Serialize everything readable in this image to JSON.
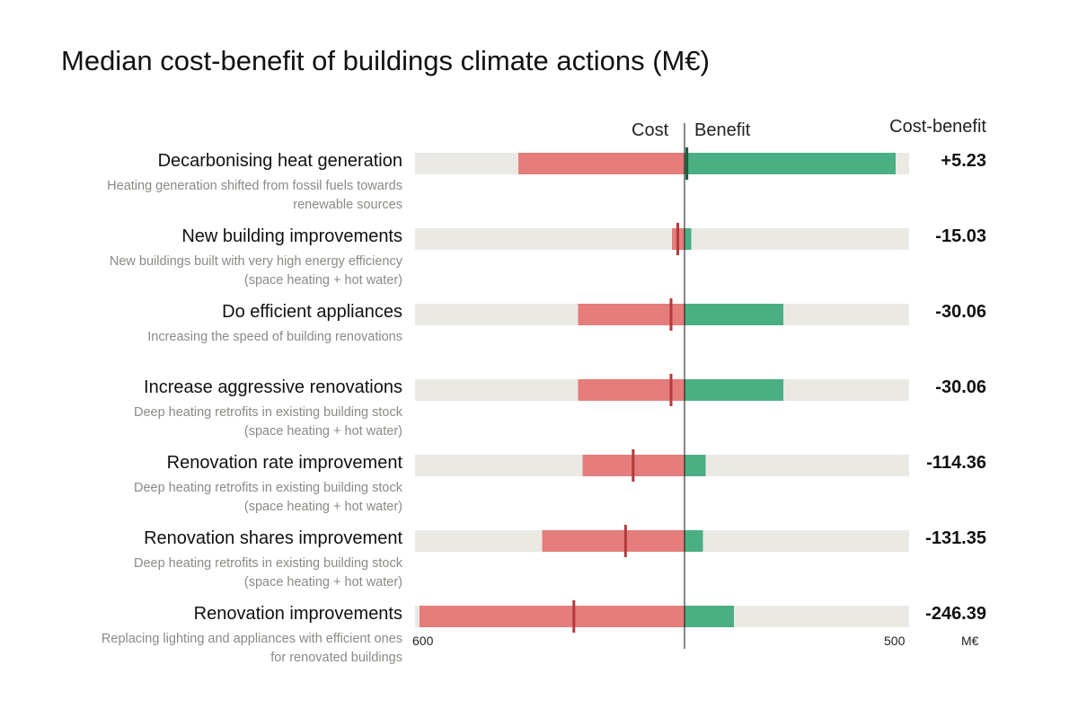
{
  "chart_data": {
    "type": "bar",
    "title": "Median cost-benefit of buildings climate actions (M€)",
    "headers": {
      "cost": "Cost",
      "benefit": "Benefit",
      "cost_benefit": "Cost-benefit"
    },
    "axis": {
      "left_tick": "600",
      "right_tick": "500",
      "unit": "M€",
      "xlim": [
        -600,
        500
      ]
    },
    "colors": {
      "cost": "#e47d7b",
      "benefit": "#4baf84",
      "track": "#ebe9e4",
      "net_cost": "#b53a3a",
      "net_benefit": "#1e5a3c",
      "zero": "#111111"
    },
    "rows": [
      {
        "title": "Decarbonising heat generation",
        "desc": [
          "Heating generation shifted from fossil fuels towards",
          "renewable sources"
        ],
        "cost": -370,
        "benefit": 470,
        "net": 5.23,
        "net_label": "+5.23"
      },
      {
        "title": "New building improvements",
        "desc": [
          "New buildings built with very high energy efficiency",
          "(space heating + hot water)"
        ],
        "cost": -28,
        "benefit": 15,
        "net": -15.03,
        "net_label": "-15.03"
      },
      {
        "title": "Do efficient appliances",
        "desc": [
          "Increasing the speed of building renovations"
        ],
        "cost": -237,
        "benefit": 220,
        "net": -30.06,
        "net_label": "-30.06"
      },
      {
        "title": "Increase aggressive renovations",
        "desc": [
          "Deep heating retrofits in existing building stock",
          "(space heating + hot water)"
        ],
        "cost": -237,
        "benefit": 220,
        "net": -30.06,
        "net_label": "-30.06"
      },
      {
        "title": "Renovation rate improvement",
        "desc": [
          "Deep heating retrofits in existing building stock",
          "(space heating + hot water)"
        ],
        "cost": -227,
        "benefit": 47,
        "net": -114.36,
        "net_label": "-114.36"
      },
      {
        "title": "Renovation shares improvement",
        "desc": [
          "Deep heating retrofits in existing building stock",
          "(space heating + hot water)"
        ],
        "cost": -317,
        "benefit": 41,
        "net": -131.35,
        "net_label": "-131.35"
      },
      {
        "title": "Renovation improvements",
        "desc": [
          "Replacing lighting and appliances with efficient ones",
          "for renovated buildings"
        ],
        "cost": -590,
        "benefit": 110,
        "net": -246.39,
        "net_label": "-246.39"
      }
    ]
  }
}
